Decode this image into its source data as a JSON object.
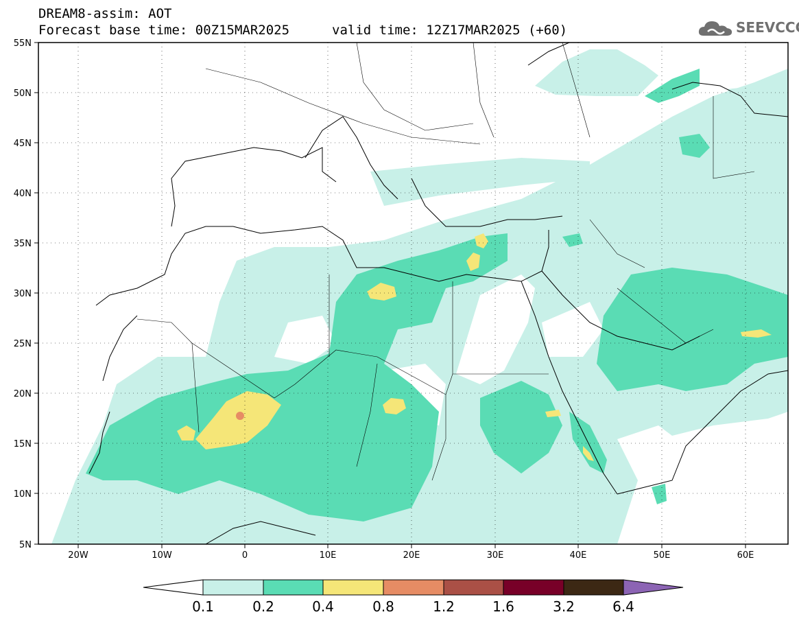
{
  "header": {
    "line1": "DREAM8-assim: AOT",
    "line2": "Forecast base time: 00Z15MAR2025",
    "valid": "valid time: 12Z17MAR2025 (+60)"
  },
  "logo": {
    "text": "SEEVCCC",
    "icon": "cloud-icon"
  },
  "map": {
    "lat_labels": [
      "55N",
      "50N",
      "45N",
      "40N",
      "35N",
      "30N",
      "25N",
      "20N",
      "15N",
      "10N",
      "5N"
    ],
    "lon_labels": [
      "20W",
      "10W",
      "0",
      "10E",
      "20E",
      "30E",
      "40E",
      "50E",
      "60E"
    ],
    "lon_range": [
      -25,
      65
    ],
    "lat_range": [
      5,
      55
    ],
    "grid": "dotted"
  },
  "colorbar": {
    "labels": [
      "0.1",
      "0.2",
      "0.4",
      "0.8",
      "1.2",
      "1.6",
      "3.2",
      "6.4"
    ],
    "colors": [
      "#ffffff",
      "#c8f0e8",
      "#5adcb4",
      "#f5e678",
      "#e68c64",
      "#aa5046",
      "#780028",
      "#3c2814",
      "#8c64b4"
    ]
  },
  "colors": {
    "low": "#c8f0e8",
    "moderate": "#5adcb4",
    "high": "#f5e678",
    "very_high": "#e68c64",
    "extreme": "#aa5046"
  }
}
